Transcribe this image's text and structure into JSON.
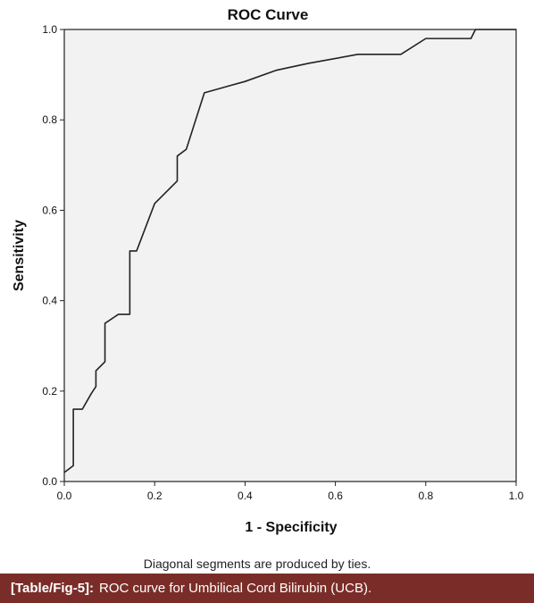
{
  "colors": {
    "plot_background": "#f2f2f2",
    "curve": "#222222",
    "frame": "#222222",
    "caption_bar": "#7a2d28",
    "caption_text": "#ffffff"
  },
  "footnote": "Diagonal segments are produced by ties.",
  "caption": {
    "label": "[Table/Fig-5]:",
    "text": "ROC curve for Umbilical Cord Bilirubin (UCB)."
  },
  "chart_data": {
    "type": "line",
    "title": "ROC Curve",
    "xlabel": "1 - Specificity",
    "ylabel": "Sensitivity",
    "xlim": [
      0,
      1
    ],
    "ylim": [
      0,
      1
    ],
    "xticks": [
      0.0,
      0.2,
      0.4,
      0.6,
      0.8,
      1.0
    ],
    "yticks": [
      0.0,
      0.2,
      0.4,
      0.6,
      0.8,
      1.0
    ],
    "tick_labels_x": [
      "0.0",
      "0.2",
      "0.4",
      "0.6",
      "0.8",
      "1.0"
    ],
    "tick_labels_y": [
      "0.0",
      "0.2",
      "0.4",
      "0.6",
      "0.8",
      "1.0"
    ],
    "grid": false,
    "legend": "none",
    "series": [
      {
        "x": [
          0.0,
          0.02,
          0.02,
          0.04,
          0.06,
          0.07,
          0.07,
          0.09,
          0.09,
          0.12,
          0.145,
          0.145,
          0.16,
          0.2,
          0.25,
          0.25,
          0.27,
          0.31,
          0.4,
          0.47,
          0.54,
          0.65,
          0.745,
          0.8,
          0.9,
          0.91,
          1.0
        ],
        "y": [
          0.02,
          0.035,
          0.16,
          0.16,
          0.195,
          0.21,
          0.245,
          0.265,
          0.35,
          0.37,
          0.37,
          0.51,
          0.51,
          0.615,
          0.665,
          0.72,
          0.735,
          0.86,
          0.885,
          0.91,
          0.925,
          0.945,
          0.945,
          0.98,
          0.98,
          1.0,
          1.0
        ]
      }
    ]
  }
}
